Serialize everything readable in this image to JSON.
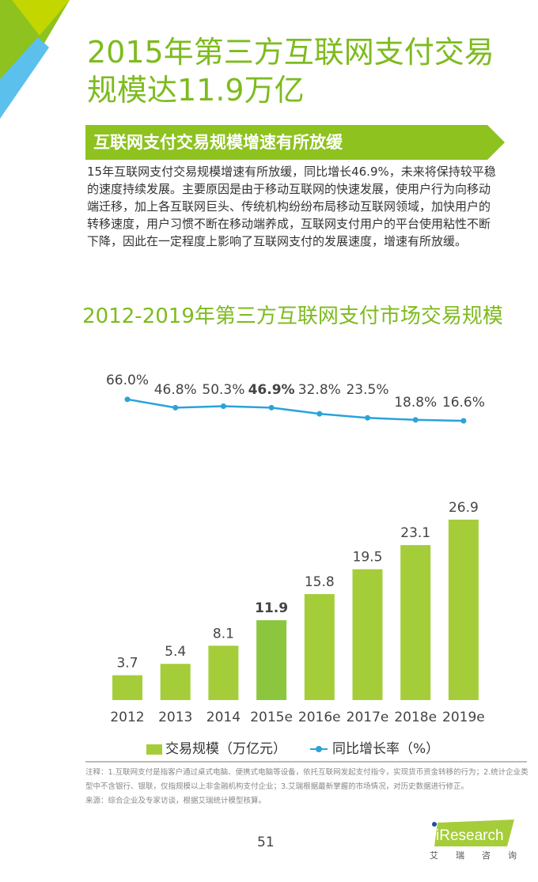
{
  "header": {
    "title_line1": "2015年第三方互联网支付交易",
    "title_line2": "规模达11.9万亿"
  },
  "section": {
    "subtitle": "互联网支付交易规模增速有所放缓",
    "body": "15年互联网支付交易规模增速有所放缓，同比增长46.9%，未来将保持较平稳的速度持续发展。主要原因是由于移动互联网的快速发展，使用户行为向移动端迁移，加上各互联网巨头、传统机构纷纷布局移动互联网领域，加快用户的转移速度，用户习惯不断在移动端养成，互联网支付用户的平台使用粘性不断下降，因此在一定程度上影响了互联网支付的发展速度，增速有所放缓。"
  },
  "colors": {
    "accent": "#8dc21f",
    "bar": "#a5cd39",
    "highlight_bar": "#8cc63f",
    "line": "#29a3dc",
    "blue_deco": "#5bc0eb"
  },
  "chart_data": {
    "type": "bar+line",
    "title": "2012-2019年第三方互联网支付市场交易规模",
    "categories": [
      "2012",
      "2013",
      "2014",
      "2015e",
      "2016e",
      "2017e",
      "2018e",
      "2019e"
    ],
    "series": [
      {
        "name": "交易规模（万亿元）",
        "type": "bar",
        "values": [
          3.7,
          5.4,
          8.1,
          11.9,
          15.8,
          19.5,
          23.1,
          26.9
        ],
        "value_labels": [
          "3.7",
          "5.4",
          "8.1",
          "11.9",
          "15.8",
          "19.5",
          "23.1",
          "26.9"
        ]
      },
      {
        "name": "同比增长率（%）",
        "type": "line",
        "values": [
          66.0,
          46.8,
          50.3,
          46.9,
          32.8,
          23.5,
          18.8,
          16.6
        ],
        "value_labels": [
          "66.0%",
          "46.8%",
          "50.3%",
          "46.9%",
          "32.8%",
          "23.5%",
          "18.8%",
          "16.6%"
        ]
      }
    ],
    "highlight_category": "2015e",
    "legend_position": "bottom",
    "grid": false
  },
  "notes": {
    "line1": "注释：1.互联网支付是指客户通过桌式电脑、便携式电脑等设备，依托互联网发起支付指令，实现货币资金转移的行为；2.统计企业类型中不含银行、银联，仅指规模以上非金融机构支付企业；3.艾瑞根据最新掌握的市场情况，对历史数据进行修正。",
    "source": "来源：综合企业及专家访谈，根据艾瑞统计模型核算。"
  },
  "footer": {
    "page": "51",
    "logo": "iResearch",
    "logo_cn": [
      "艾",
      "瑞",
      "咨",
      "询"
    ]
  }
}
